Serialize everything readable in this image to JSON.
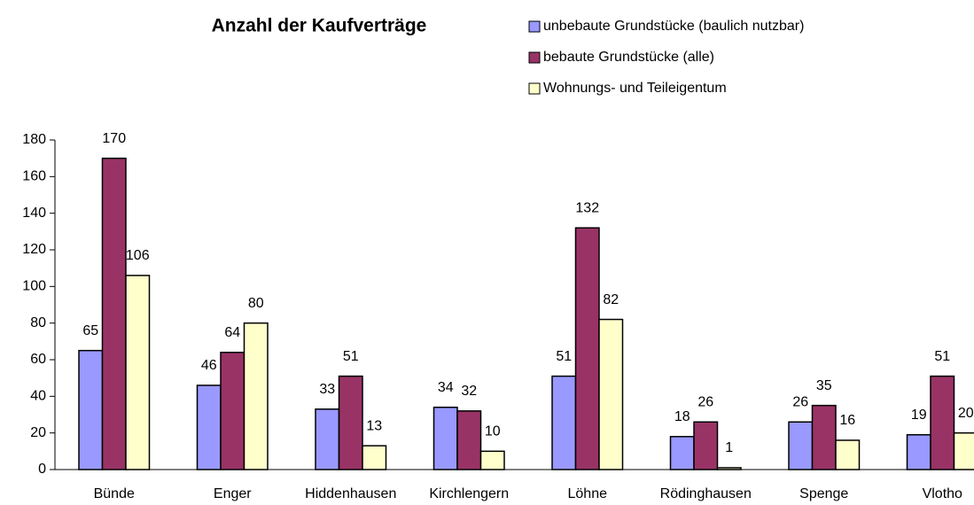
{
  "chart_data": {
    "type": "bar",
    "title": "Anzahl der Kaufverträge",
    "categories": [
      "Bünde",
      "Enger",
      "Hiddenhausen",
      "Kirchlengern",
      "Löhne",
      "Rödinghausen",
      "Spenge",
      "Vlotho"
    ],
    "series": [
      {
        "name": "unbebaute Grundstücke (baulich nutzbar)",
        "color": "#9999ff",
        "values": [
          65,
          46,
          33,
          34,
          51,
          18,
          26,
          19
        ]
      },
      {
        "name": "bebaute Grundstücke (alle)",
        "color": "#993366",
        "values": [
          170,
          64,
          51,
          32,
          132,
          26,
          35,
          51
        ]
      },
      {
        "name": "Wohnungs- und Teileigentum",
        "color": "#ffffcc",
        "values": [
          106,
          80,
          13,
          10,
          82,
          1,
          16,
          20
        ]
      }
    ],
    "ylim": [
      0,
      180
    ],
    "yticks": [
      0,
      20,
      40,
      60,
      80,
      100,
      120,
      140,
      160,
      180
    ],
    "grid": false,
    "legend": "top-right"
  }
}
